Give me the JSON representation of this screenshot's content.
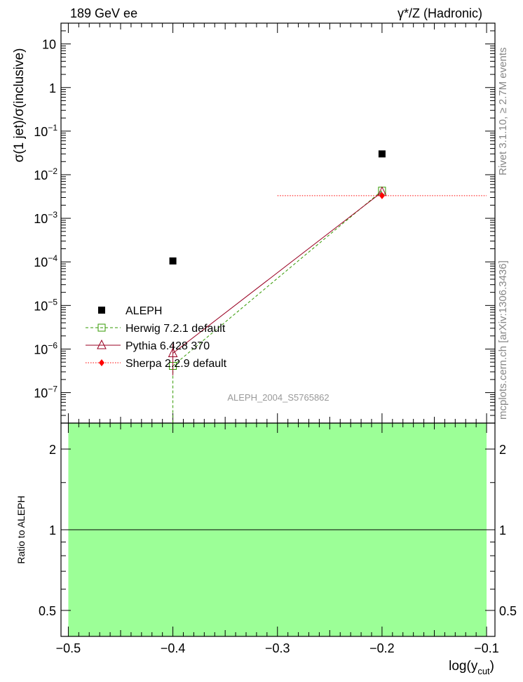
{
  "header": {
    "left": "189 GeV ee",
    "right": "γ*/Z (Hadronic)"
  },
  "side": {
    "rivet": "Rivet 3.1.10, ≥ 2.7M events",
    "mcplots": "mcplots.cern.ch [arXiv:1306.3436]"
  },
  "watermark": "ALEPH_2004_S5765862",
  "chart_data": {
    "type": "line",
    "title": "",
    "xlabel": "log(y_cut)",
    "xlabel_main": "log(y",
    "xlabel_sub": "cut",
    "xlabel_close": ")",
    "ylabel": "σ(1 jet)/σ(inclusive)",
    "ratio_ylabel": "Ratio to ALEPH",
    "xlim": [
      -0.507,
      -0.092
    ],
    "ylim": [
      2e-08,
      30
    ],
    "yscale": "log",
    "ratio_ylim": [
      0.4,
      2.5
    ],
    "x_ticks": [
      -0.5,
      -0.4,
      -0.3,
      -0.2,
      -0.1
    ],
    "x_tick_labels": [
      "−0.5",
      "−0.4",
      "−0.3",
      "−0.2",
      "−0.1"
    ],
    "y_ticks": [
      10,
      1,
      0.1,
      0.01,
      0.001,
      0.0001,
      1e-05,
      1e-06,
      1e-07
    ],
    "y_tick_labels": [
      {
        "m": "10",
        "e": ""
      },
      {
        "m": "1",
        "e": ""
      },
      {
        "m": "10",
        "e": "−1"
      },
      {
        "m": "10",
        "e": "−2"
      },
      {
        "m": "10",
        "e": "−3"
      },
      {
        "m": "10",
        "e": "−4"
      },
      {
        "m": "10",
        "e": "−5"
      },
      {
        "m": "10",
        "e": "−6"
      },
      {
        "m": "10",
        "e": "−7"
      }
    ],
    "ratio_ticks": [
      2,
      1,
      0.5
    ],
    "ratio_tick_labels": [
      "2",
      "1",
      "0.5"
    ],
    "legend_position": "lower-left",
    "series": [
      {
        "name": "ALEPH",
        "color": "#000000",
        "marker": "filled-square",
        "line": "none",
        "x": [
          -0.4,
          -0.2
        ],
        "y": [
          0.000105,
          0.03
        ]
      },
      {
        "name": "Herwig 7.2.1 default",
        "color": "#339900",
        "marker": "open-square",
        "line": "dashed",
        "x": [
          -0.4,
          -0.2
        ],
        "y": [
          4.1e-07,
          0.0043
        ],
        "yerr_low": [
          4.1e-07,
          0
        ],
        "yerr_high": [
          0,
          0
        ]
      },
      {
        "name": "Pythia 6.428 370",
        "color": "#990022",
        "marker": "open-triangle",
        "line": "solid",
        "x": [
          -0.4,
          -0.2
        ],
        "y": [
          8e-07,
          0.004
        ],
        "yerr_low": [
          5.5e-07,
          0
        ],
        "yerr_high": [
          5e-07,
          0
        ]
      },
      {
        "name": "Sherpa 2.2.9 default",
        "color": "#ff0000",
        "marker": "filled-diamond",
        "line": "dotted",
        "x": [
          -0.2
        ],
        "y": [
          0.0033
        ],
        "xerr": [
          0.1
        ]
      }
    ],
    "ratio_band": {
      "color": "#9cff97",
      "low": 0.4,
      "high": 2.5
    }
  }
}
